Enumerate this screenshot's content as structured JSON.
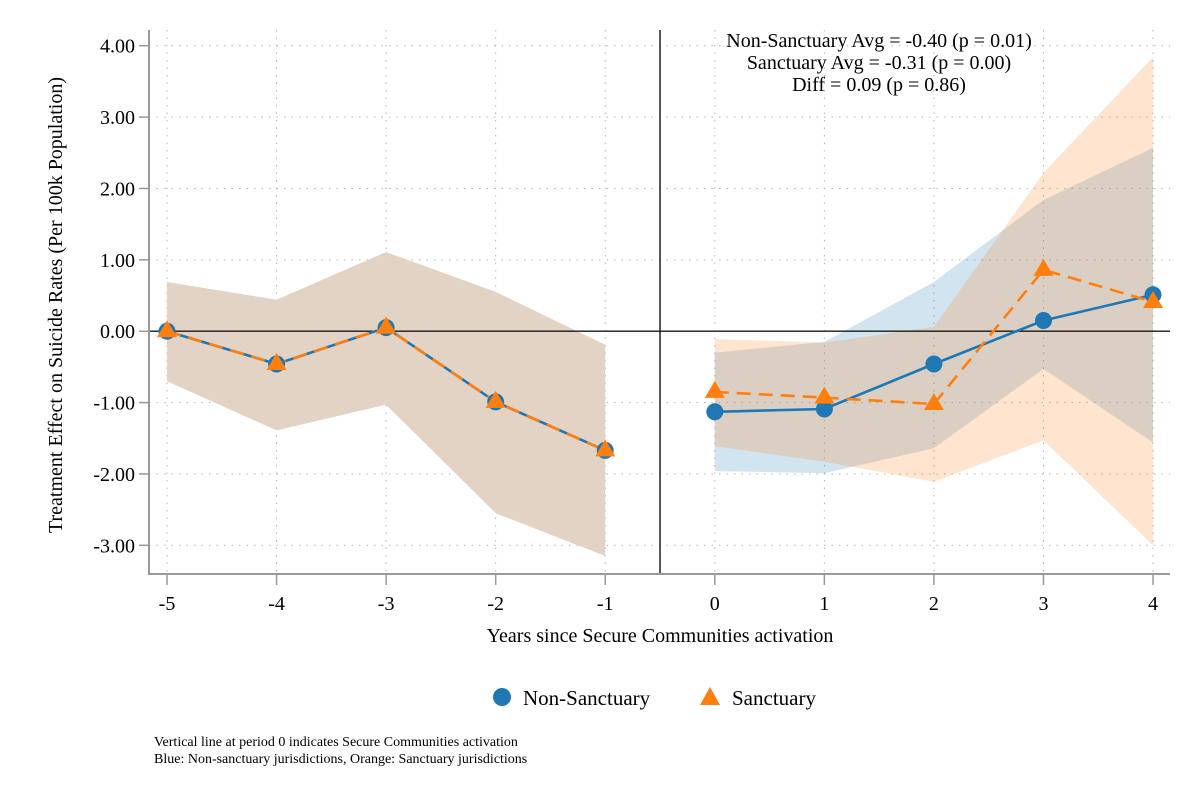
{
  "chart_data": {
    "type": "line",
    "title": "",
    "xlabel": "Years since Secure Communities activation",
    "ylabel": "Treatment Effect on Suicide Rates (Per 100k Population)",
    "xlim": [
      -5.17,
      4.16
    ],
    "ylim": [
      -3.4,
      4.2
    ],
    "x_ticks": [
      -5,
      -4,
      -3,
      -2,
      -1,
      0,
      1,
      2,
      3,
      4
    ],
    "y_ticks": [
      4,
      3,
      2,
      1,
      0,
      -1,
      -2,
      -3
    ],
    "y_tick_labels": [
      "4.00",
      "3.00",
      "2.00",
      "1.00",
      "0.00",
      "-1.00",
      "-2.00",
      "-3.00"
    ],
    "grid": true,
    "reference_lines": {
      "horizontal_y": 0,
      "vertical_x": -0.5,
      "vertical_note": "Vertical line at period 0 indicates Secure Communities activation"
    },
    "series": [
      {
        "name": "Non-Sanctuary",
        "color": "#1f77b4",
        "band_color": "#1f77b4",
        "marker": "circle",
        "line_style": "solid",
        "pre_period": {
          "x": [
            -5,
            -4,
            -3,
            -2,
            -1
          ],
          "values": [
            0.0,
            -0.46,
            0.05,
            -0.99,
            -1.67
          ],
          "ci_upper": [
            0.69,
            0.44,
            1.11,
            0.55,
            -0.19
          ],
          "ci_lower": [
            -0.7,
            -1.39,
            -1.03,
            -2.55,
            -3.15
          ]
        },
        "post_period": {
          "x": [
            0,
            1,
            2,
            3,
            4
          ],
          "values": [
            -1.13,
            -1.09,
            -0.46,
            0.15,
            0.51
          ],
          "ci_upper": [
            -0.3,
            -0.15,
            0.69,
            1.84,
            2.57
          ],
          "ci_lower": [
            -1.96,
            -1.99,
            -1.64,
            -0.53,
            -1.56
          ]
        }
      },
      {
        "name": "Sanctuary",
        "color": "#ff7f0e",
        "band_color": "#ff7f0e",
        "marker": "triangle",
        "line_style": "dashed",
        "pre_period": {
          "x": [
            -5,
            -4,
            -3,
            -2,
            -1
          ],
          "values": [
            0.0,
            -0.46,
            0.05,
            -0.99,
            -1.67
          ],
          "ci_upper": [
            0.69,
            0.44,
            1.11,
            0.55,
            -0.19
          ],
          "ci_lower": [
            -0.7,
            -1.39,
            -1.03,
            -2.55,
            -3.15
          ]
        },
        "post_period": {
          "x": [
            0,
            1,
            2,
            3,
            4
          ],
          "values": [
            -0.85,
            -0.93,
            -1.02,
            0.86,
            0.41
          ],
          "ci_upper": [
            -0.11,
            -0.16,
            0.06,
            2.22,
            3.84
          ],
          "ci_lower": [
            -1.61,
            -1.83,
            -2.11,
            -1.53,
            -3.0
          ]
        }
      }
    ],
    "pre_band_color": "#e2d3c4",
    "annotations": [
      "Non-Sanctuary Avg = -0.40 (p = 0.01)",
      "Sanctuary Avg = -0.31 (p = 0.00)",
      "Diff = 0.09 (p = 0.86)"
    ],
    "legend": {
      "position": "bottom-center",
      "entries": [
        "Non-Sanctuary",
        "Sanctuary"
      ]
    },
    "notes": [
      "Vertical line at period 0 indicates Secure Communities activation",
      "Blue: Non-sanctuary jurisdictions, Orange: Sanctuary jurisdictions"
    ]
  }
}
